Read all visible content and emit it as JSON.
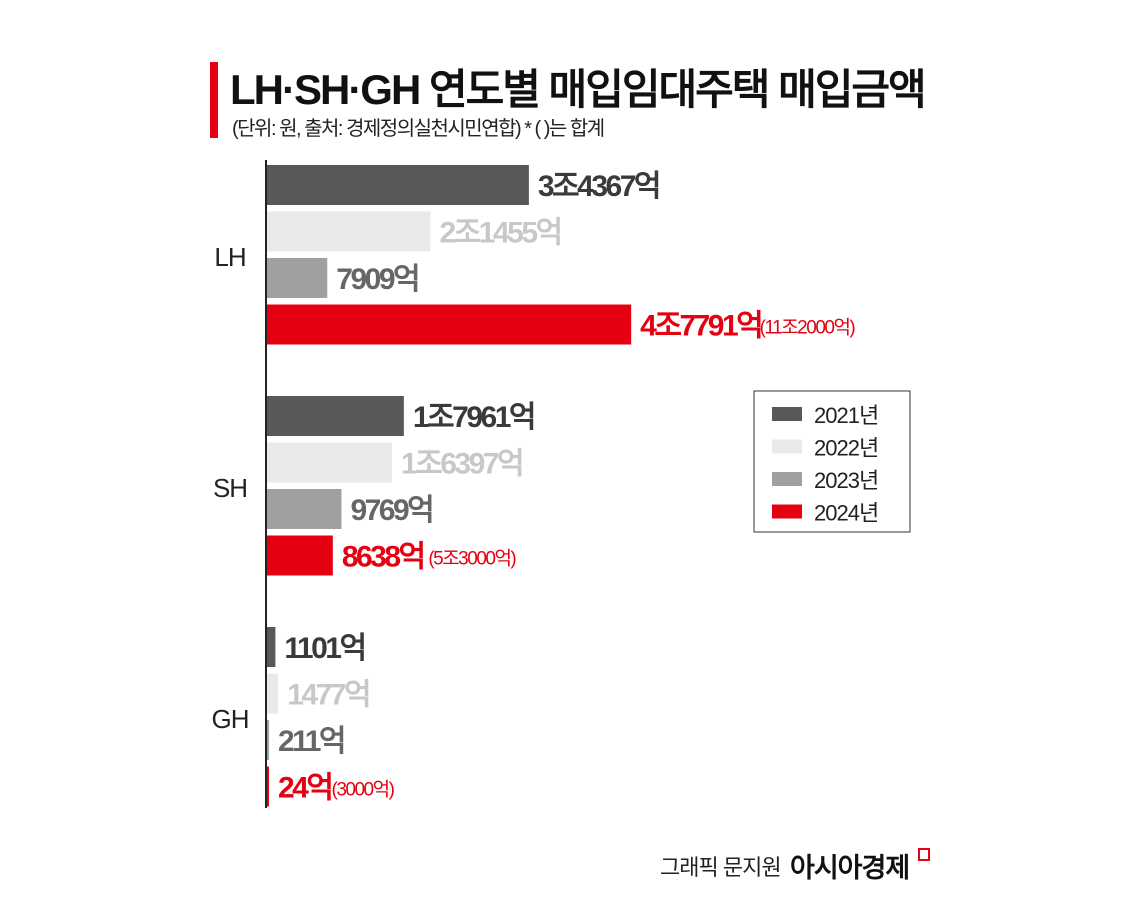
{
  "title": "LH·SH·GH 연도별 매입임대주택 매입금액",
  "subtitle": "(단위: 원, 출처: 경제정의실천시민연합)  * ( )는 합계",
  "credit": "그래픽 문지원",
  "logo_text": "아시아경제",
  "colors": {
    "2021년": "#5a5758",
    "2022년": "#e8e9e8",
    "2023년": "#a0a0a0",
    "2024년": "#e50012",
    "accent": "#e50012"
  },
  "chart_data": {
    "type": "bar",
    "orientation": "horizontal",
    "unit": "억 원",
    "categories": [
      "LH",
      "SH",
      "GH"
    ],
    "series": [
      {
        "name": "2021년",
        "values": [
          34367,
          17961,
          1101
        ],
        "labels": [
          "3조4367억",
          "1조7961억",
          "1101억"
        ],
        "label_color": "#3a3a3a"
      },
      {
        "name": "2022년",
        "values": [
          21455,
          16397,
          1477
        ],
        "labels": [
          "2조1455억",
          "1조6397억",
          "1477억"
        ],
        "label_color": "#c8c8c8"
      },
      {
        "name": "2023년",
        "values": [
          7909,
          9769,
          211
        ],
        "labels": [
          "7909억",
          "9769억",
          "211억"
        ],
        "label_color": "#666666"
      },
      {
        "name": "2024년",
        "values": [
          47791,
          8638,
          24
        ],
        "labels": [
          "4조7791억",
          "8638억",
          "24억"
        ],
        "label_color": "#e50012"
      }
    ],
    "totals": [
      "(11조2000억)",
      "(5조3000억)",
      "(3000억)"
    ],
    "legend_placement": "right",
    "grid": false
  }
}
